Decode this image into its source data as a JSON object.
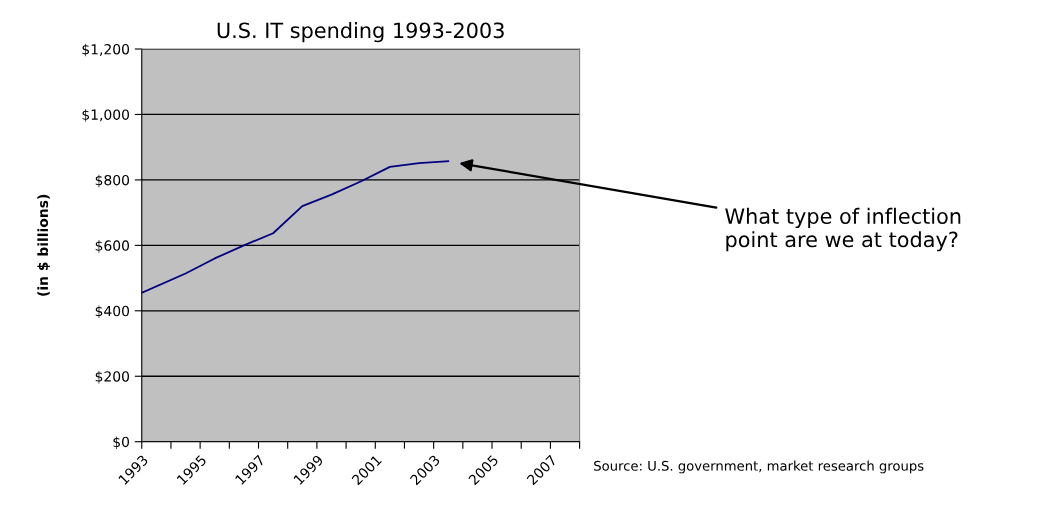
{
  "chart_data": {
    "type": "line",
    "title": "U.S. IT spending 1993-2003",
    "ylabel": "(in $ billions)",
    "x": [
      1993,
      1994.5,
      1995.5,
      1996.5,
      1997.5,
      1998.5,
      1999.5,
      2000.5,
      2001.5,
      2002.5,
      2003.5
    ],
    "series": [
      {
        "color": "#000080",
        "values": [
          455,
          514,
          560,
          600,
          637,
          720,
          755,
          795,
          840,
          851,
          857
        ]
      }
    ],
    "xlim": [
      1993,
      2008
    ],
    "xticks": [
      1993,
      {
        "value": 1994,
        "label": null
      },
      1995,
      {
        "value": 1996,
        "label": null
      },
      1997,
      {
        "value": 1998,
        "label": null
      },
      1999,
      {
        "value": 2000,
        "label": null
      },
      2001,
      {
        "value": 2002,
        "label": null
      },
      2003,
      {
        "value": 2004,
        "label": null
      },
      2005,
      {
        "value": 2006,
        "label": null
      },
      2007,
      {
        "value": 2008,
        "label": null
      }
    ],
    "ylim": [
      0,
      1200
    ],
    "yticks": [
      {
        "value": 0,
        "label": "$0"
      },
      {
        "value": 200,
        "label": "$200"
      },
      {
        "value": 400,
        "label": "$400"
      },
      {
        "value": 600,
        "label": "$600"
      },
      {
        "value": 800,
        "label": "$800"
      },
      {
        "value": 1000,
        "label": "$1,000"
      },
      {
        "value": 1200,
        "label": "$1,200"
      }
    ],
    "grid": "y",
    "annotations": [
      "What type of inflection\npoint are we at today?",
      "Source: U.S. government, market research groups"
    ]
  }
}
